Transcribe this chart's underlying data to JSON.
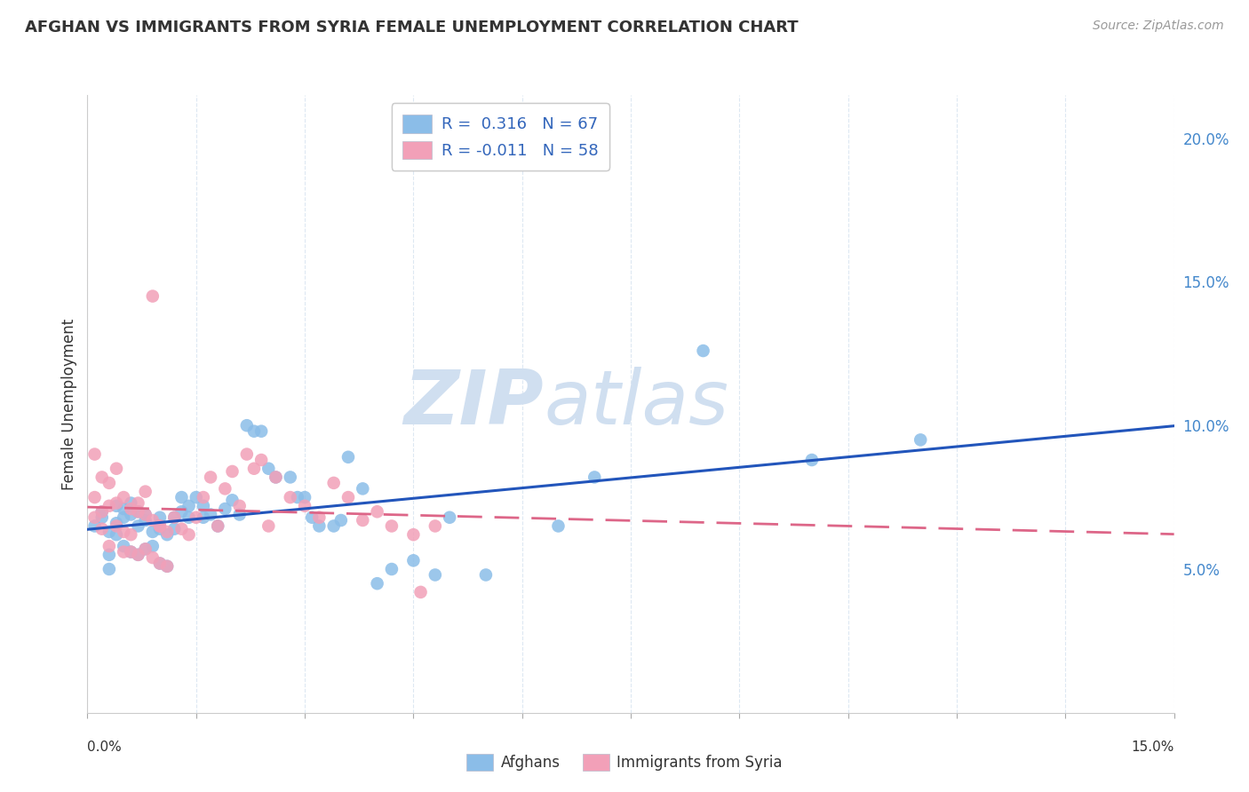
{
  "title": "AFGHAN VS IMMIGRANTS FROM SYRIA FEMALE UNEMPLOYMENT CORRELATION CHART",
  "source": "Source: ZipAtlas.com",
  "ylabel": "Female Unemployment",
  "right_yticks": [
    0.05,
    0.1,
    0.15,
    0.2
  ],
  "right_yticklabels": [
    "5.0%",
    "10.0%",
    "15.0%",
    "20.0%"
  ],
  "xmin": 0.0,
  "xmax": 0.15,
  "ymin": 0.0,
  "ymax": 0.215,
  "afghans_color": "#8bbde8",
  "syria_color": "#f2a0b8",
  "afghans_line_color": "#2255bb",
  "syria_line_color": "#dd6688",
  "watermark_zip": "ZIP",
  "watermark_atlas": "atlas",
  "watermark_color": "#d0dff0",
  "background_color": "#ffffff",
  "grid_color": "#dde8f2",
  "afghans_R": 0.316,
  "afghans_N": 67,
  "syria_R": -0.011,
  "syria_N": 58,
  "afghans_x": [
    0.001,
    0.002,
    0.002,
    0.003,
    0.003,
    0.003,
    0.004,
    0.004,
    0.004,
    0.005,
    0.005,
    0.005,
    0.006,
    0.006,
    0.006,
    0.007,
    0.007,
    0.007,
    0.008,
    0.008,
    0.008,
    0.009,
    0.009,
    0.01,
    0.01,
    0.01,
    0.011,
    0.011,
    0.012,
    0.012,
    0.013,
    0.013,
    0.014,
    0.014,
    0.015,
    0.016,
    0.016,
    0.017,
    0.018,
    0.019,
    0.02,
    0.021,
    0.022,
    0.023,
    0.024,
    0.025,
    0.026,
    0.028,
    0.029,
    0.03,
    0.031,
    0.032,
    0.034,
    0.035,
    0.036,
    0.038,
    0.04,
    0.042,
    0.045,
    0.048,
    0.05,
    0.055,
    0.065,
    0.07,
    0.085,
    0.1,
    0.115
  ],
  "afghans_y": [
    0.065,
    0.07,
    0.068,
    0.063,
    0.055,
    0.05,
    0.072,
    0.066,
    0.062,
    0.071,
    0.068,
    0.058,
    0.073,
    0.069,
    0.056,
    0.07,
    0.065,
    0.055,
    0.069,
    0.067,
    0.057,
    0.063,
    0.058,
    0.068,
    0.064,
    0.052,
    0.062,
    0.051,
    0.068,
    0.064,
    0.075,
    0.07,
    0.072,
    0.068,
    0.075,
    0.072,
    0.068,
    0.069,
    0.065,
    0.071,
    0.074,
    0.069,
    0.1,
    0.098,
    0.098,
    0.085,
    0.082,
    0.082,
    0.075,
    0.075,
    0.068,
    0.065,
    0.065,
    0.067,
    0.089,
    0.078,
    0.045,
    0.05,
    0.053,
    0.048,
    0.068,
    0.048,
    0.065,
    0.082,
    0.126,
    0.088,
    0.095
  ],
  "syria_x": [
    0.001,
    0.001,
    0.002,
    0.002,
    0.003,
    0.003,
    0.004,
    0.004,
    0.005,
    0.005,
    0.006,
    0.006,
    0.007,
    0.007,
    0.008,
    0.008,
    0.009,
    0.009,
    0.01,
    0.01,
    0.011,
    0.011,
    0.012,
    0.013,
    0.014,
    0.015,
    0.016,
    0.017,
    0.018,
    0.019,
    0.02,
    0.021,
    0.022,
    0.023,
    0.024,
    0.025,
    0.026,
    0.028,
    0.03,
    0.032,
    0.034,
    0.036,
    0.038,
    0.04,
    0.042,
    0.045,
    0.001,
    0.002,
    0.003,
    0.004,
    0.005,
    0.006,
    0.007,
    0.008,
    0.009,
    0.01,
    0.048,
    0.046
  ],
  "syria_y": [
    0.068,
    0.075,
    0.07,
    0.064,
    0.072,
    0.058,
    0.085,
    0.065,
    0.075,
    0.056,
    0.071,
    0.062,
    0.073,
    0.055,
    0.069,
    0.057,
    0.067,
    0.054,
    0.065,
    0.052,
    0.063,
    0.051,
    0.068,
    0.064,
    0.062,
    0.068,
    0.075,
    0.082,
    0.065,
    0.078,
    0.084,
    0.072,
    0.09,
    0.085,
    0.088,
    0.065,
    0.082,
    0.075,
    0.072,
    0.068,
    0.08,
    0.075,
    0.067,
    0.07,
    0.065,
    0.062,
    0.09,
    0.082,
    0.08,
    0.073,
    0.063,
    0.056,
    0.07,
    0.077,
    0.145,
    0.065,
    0.065,
    0.042
  ]
}
